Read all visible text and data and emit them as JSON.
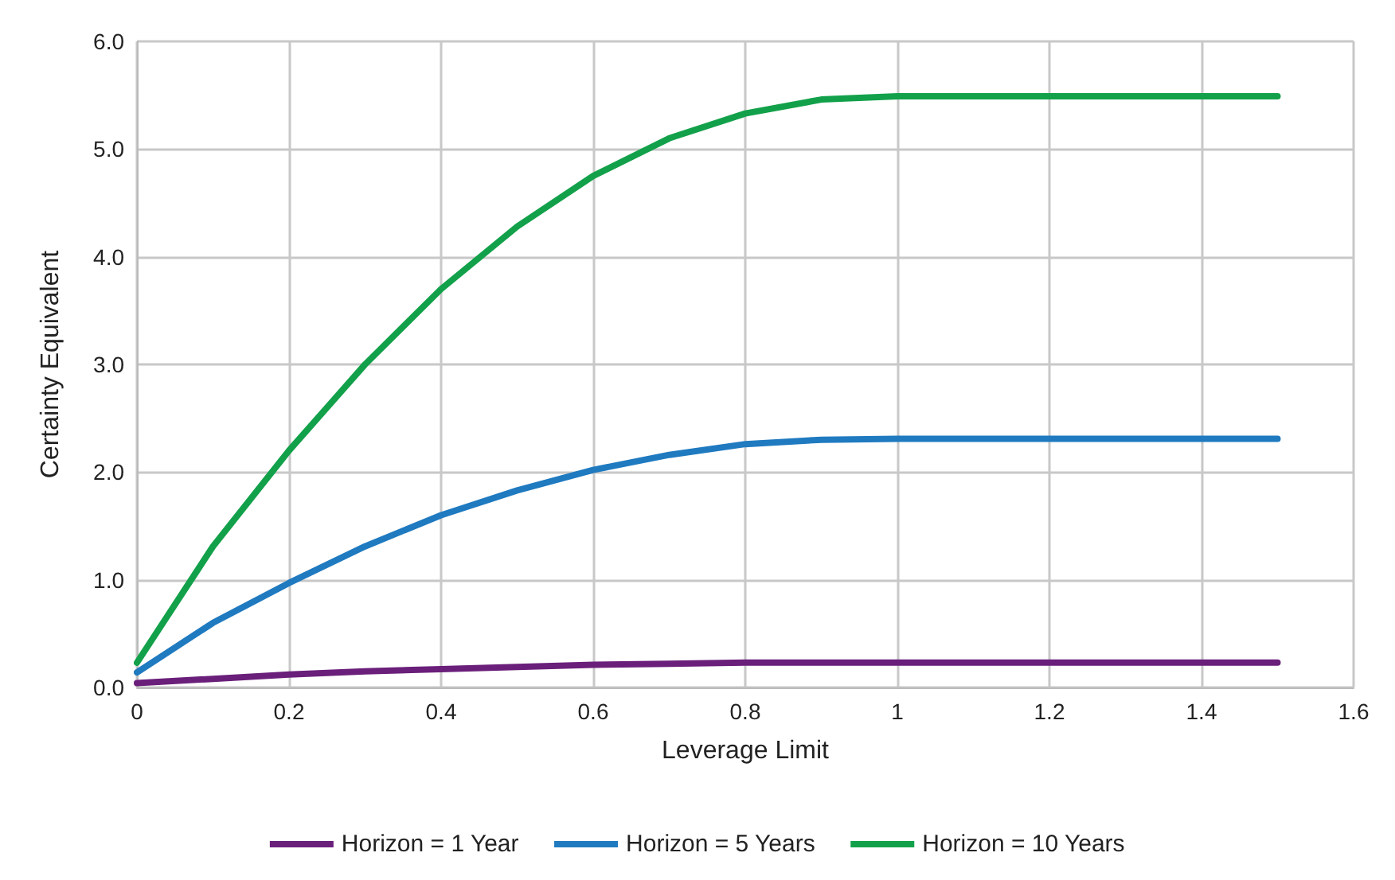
{
  "chart_data": {
    "type": "line",
    "xlabel": "Leverage Limit",
    "ylabel": "Certainty Equivalent",
    "x": [
      0,
      0.1,
      0.2,
      0.3,
      0.4,
      0.5,
      0.6,
      0.7,
      0.8,
      0.9,
      1.0,
      1.1,
      1.2,
      1.3,
      1.4,
      1.5
    ],
    "series": [
      {
        "name": "Horizon = 1 Year",
        "color": "#6a1f7a",
        "values": [
          0.04,
          0.08,
          0.12,
          0.15,
          0.17,
          0.19,
          0.21,
          0.22,
          0.23,
          0.23,
          0.23,
          0.23,
          0.23,
          0.23,
          0.23,
          0.23
        ]
      },
      {
        "name": "Horizon = 5 Years",
        "color": "#1f7ac0",
        "values": [
          0.14,
          0.6,
          0.97,
          1.31,
          1.6,
          1.83,
          2.02,
          2.16,
          2.26,
          2.3,
          2.31,
          2.31,
          2.31,
          2.31,
          2.31,
          2.31
        ]
      },
      {
        "name": "Horizon = 10 Years",
        "color": "#12a14a",
        "values": [
          0.23,
          1.31,
          2.2,
          3.0,
          3.7,
          4.28,
          4.75,
          5.1,
          5.33,
          5.46,
          5.49,
          5.49,
          5.49,
          5.49,
          5.49,
          5.49
        ]
      }
    ],
    "xlim": [
      0,
      1.6
    ],
    "xticks": [
      0,
      0.2,
      0.4,
      0.6,
      0.8,
      1,
      1.2,
      1.4,
      1.6
    ],
    "ylim": [
      0,
      6
    ],
    "yticks": [
      {
        "value": 0,
        "label": "0.0"
      },
      {
        "value": 1,
        "label": "1.0"
      },
      {
        "value": 2,
        "label": "2.0"
      },
      {
        "value": 3,
        "label": "3.0"
      },
      {
        "value": 4,
        "label": "4.0"
      },
      {
        "value": 5,
        "label": "5.0"
      },
      {
        "value": 6,
        "label": "6.0"
      }
    ],
    "grid": true,
    "legend": "bottom",
    "marker": "none",
    "line_style": "solid"
  }
}
